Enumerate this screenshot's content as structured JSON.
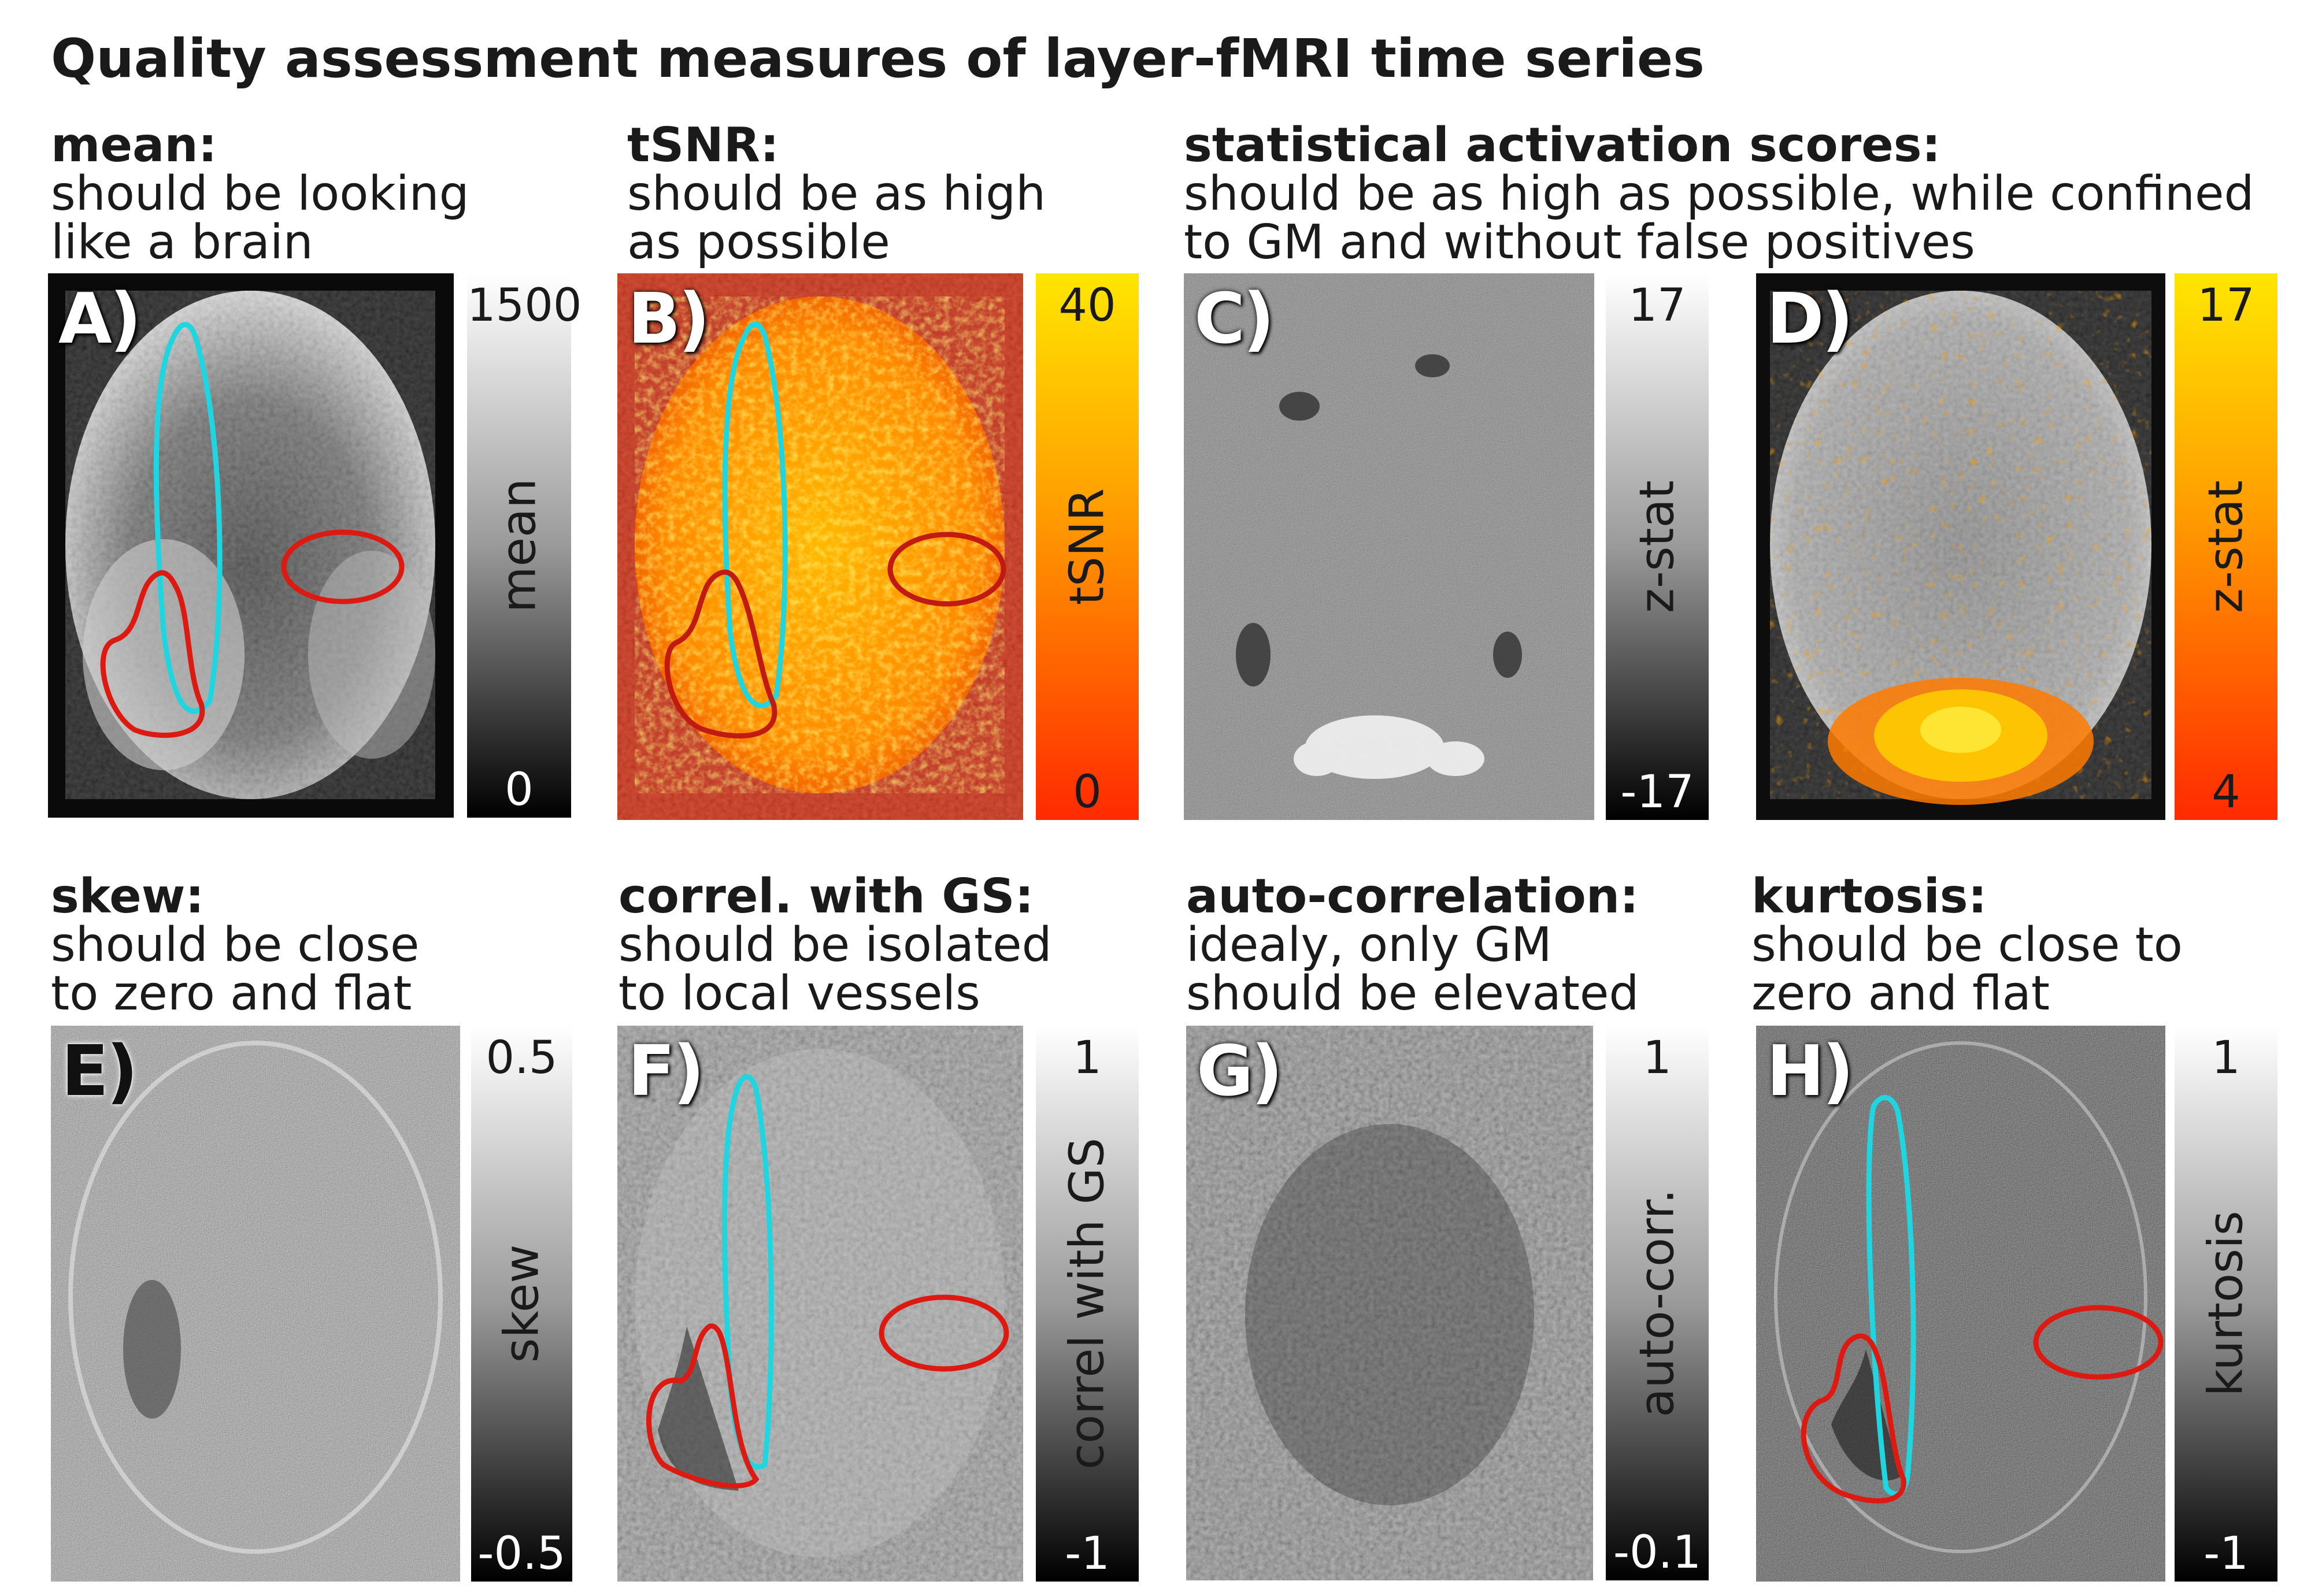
{
  "title": "Quality assessment measures of layer-fMRI time series",
  "panels": {
    "A": {
      "label": "A)",
      "header": "mean:",
      "desc": [
        "should be looking",
        "like a brain"
      ],
      "colorbar": {
        "top": "1500",
        "bottom": "0",
        "name": "mean"
      }
    },
    "B": {
      "label": "B)",
      "header": "tSNR:",
      "desc": [
        "should be as high",
        "as possible"
      ],
      "colorbar": {
        "top": "40",
        "bottom": "0",
        "name": "tSNR"
      }
    },
    "CD": {
      "header": "statistical activation scores:",
      "desc": [
        "should be as high as possible, while confined",
        "to GM and without false positives"
      ]
    },
    "C": {
      "label": "C)",
      "colorbar": {
        "top": "17",
        "bottom": "-17",
        "name": "z-stat"
      }
    },
    "D": {
      "label": "D)",
      "colorbar": {
        "top": "17",
        "bottom": "4",
        "name": "z-stat"
      }
    },
    "E": {
      "label": "E)",
      "header": "skew:",
      "desc": [
        "should be close",
        "to zero and flat"
      ],
      "colorbar": {
        "top": "0.5",
        "bottom": "-0.5",
        "name": "skew"
      }
    },
    "F": {
      "label": "F)",
      "header": "correl. with GS:",
      "desc": [
        "should be isolated",
        "to local vessels"
      ],
      "colorbar": {
        "top": "1",
        "bottom": "-1",
        "name": "correl with GS"
      }
    },
    "G": {
      "label": "G)",
      "header": "auto-correlation:",
      "desc": [
        "idealy, only GM",
        "should be elevated"
      ],
      "colorbar": {
        "top": "1",
        "bottom": "-0.1",
        "name": "auto-corr."
      }
    },
    "H": {
      "label": "H)",
      "header": "kurtosis:",
      "desc": [
        "should be close to",
        "zero and flat"
      ],
      "colorbar": {
        "top": "1",
        "bottom": "-1",
        "name": "kurtosis"
      }
    }
  },
  "colors": {
    "roi_cyan": "#1fd6e0",
    "roi_red": "#dd1a12",
    "hot_low": "#ff2a00",
    "hot_high": "#ffe600"
  }
}
